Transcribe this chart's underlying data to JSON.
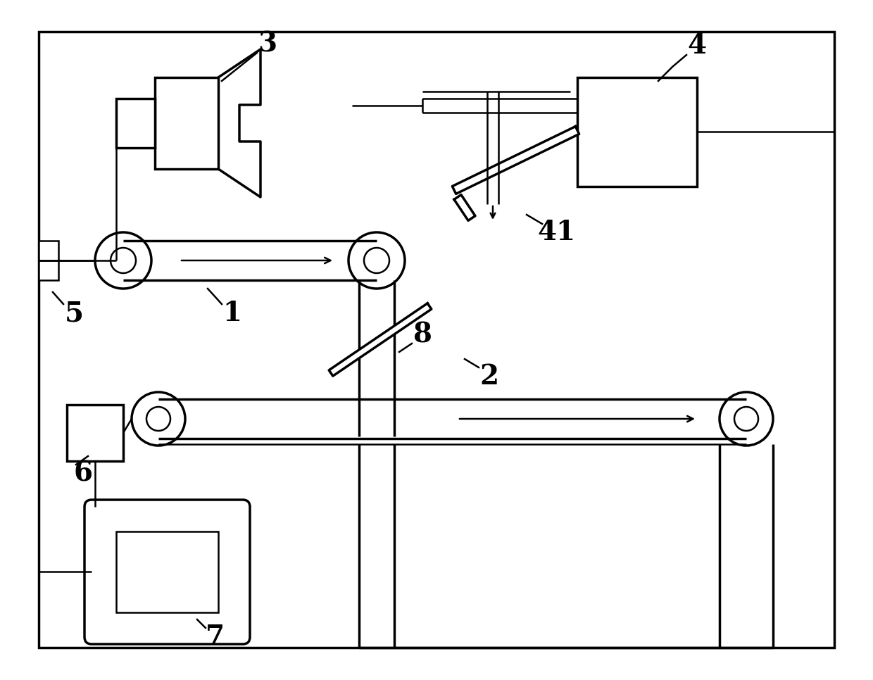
{
  "bg_color": "#ffffff",
  "line_color": "#000000",
  "lw_thick": 2.5,
  "lw_med": 1.8,
  "lw_thin": 1.2,
  "fig_width": 12.4,
  "fig_height": 9.66
}
